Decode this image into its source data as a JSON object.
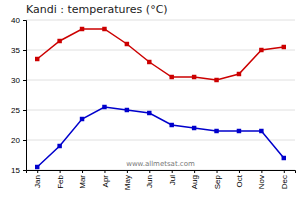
{
  "chart_data": {
    "type": "line",
    "title": "Kandi : temperatures (°C)",
    "categories": [
      "Jan",
      "Feb",
      "Mar",
      "Apr",
      "May",
      "Jun",
      "Jul",
      "Aug",
      "Sep",
      "Oct",
      "Nov",
      "Dec"
    ],
    "series": [
      {
        "color": "#cc0000",
        "marker": "square",
        "values": [
          33.5,
          36.5,
          38.5,
          38.5,
          36.0,
          33.0,
          30.5,
          30.5,
          30.0,
          31.0,
          35.0,
          35.5
        ]
      },
      {
        "color": "#0000cc",
        "marker": "square",
        "values": [
          15.5,
          19.0,
          23.5,
          25.5,
          25.0,
          24.5,
          22.5,
          22.0,
          21.5,
          21.5,
          21.5,
          17.0
        ]
      }
    ],
    "ylim": [
      15,
      40
    ],
    "yticks": [
      15,
      20,
      25,
      30,
      35,
      40
    ],
    "grid": true,
    "annotation": "www.allmetsat.com"
  }
}
